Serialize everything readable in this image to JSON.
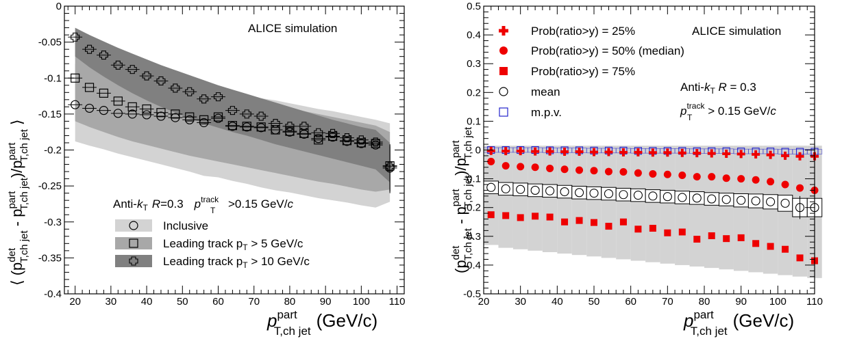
{
  "chart_data": [
    {
      "type": "scatter",
      "panel": "left",
      "xlim": [
        17,
        112
      ],
      "ylim": [
        -0.4,
        0
      ],
      "xticks": [
        20,
        30,
        40,
        50,
        60,
        70,
        80,
        90,
        100,
        110
      ],
      "yticks": [
        0,
        -0.05,
        -0.1,
        -0.15,
        -0.2,
        -0.25,
        -0.3,
        -0.35,
        -0.4
      ],
      "ytick_labels": [
        "0",
        "-0.05",
        "-0.1",
        "-0.15",
        "-0.2",
        "-0.25",
        "-0.3",
        "-0.35",
        "-0.4"
      ],
      "xlabel": {
        "main": "p",
        "sup": "part",
        "sub": "T,ch jet",
        "unit": "(GeV/c)"
      },
      "ylabel": {
        "open": "⟨ (p",
        "sup1": "det",
        "sub1": "T,ch jet",
        "minus": " - p",
        "sup2": "part",
        "sub2": "T,ch jet",
        "div": ")/p",
        "sup3": "part",
        "sub3": "T,ch jet",
        "close": "⟩"
      },
      "annotation": "ALICE simulation",
      "legend_header": {
        "a": "Anti-",
        "k": "k",
        "t": "T",
        "r": "R",
        "rv": "=0.3",
        "p": "p",
        "psup": "track",
        "psub": "T",
        "cut": ">0.15 GeV/",
        "c": "c"
      },
      "legend": [
        {
          "label": "Inclusive",
          "marker": "circle",
          "band": "#d3d3d3"
        },
        {
          "label": "Leading track  p",
          "sub": "T",
          "tail": " > 5 GeV/c",
          "marker": "square",
          "band": "#a8a8a8"
        },
        {
          "label": "Leading track  p",
          "sub": "T",
          "tail": " > 10 GeV/c",
          "marker": "cross",
          "band": "#808080"
        }
      ],
      "series": [
        {
          "name": "Inclusive",
          "marker": "circle",
          "color": "#000000",
          "band_color": "#d3d3d3",
          "x": [
            20,
            24,
            28,
            32,
            36,
            40,
            44,
            48,
            52,
            56,
            60,
            64,
            68,
            72,
            76,
            80,
            84,
            88,
            92,
            96,
            100,
            104,
            108
          ],
          "y": [
            -0.137,
            -0.142,
            -0.145,
            -0.149,
            -0.15,
            -0.151,
            -0.153,
            -0.155,
            -0.158,
            -0.162,
            -0.156,
            -0.167,
            -0.168,
            -0.169,
            -0.172,
            -0.175,
            -0.178,
            -0.184,
            -0.182,
            -0.188,
            -0.191,
            -0.193,
            -0.225
          ],
          "band_low": [
            -0.188,
            -0.194,
            -0.199,
            -0.205,
            -0.21,
            -0.215,
            -0.22,
            -0.225,
            -0.23,
            -0.236,
            -0.238,
            -0.243,
            -0.247,
            -0.252,
            -0.256,
            -0.259,
            -0.263,
            -0.267,
            -0.27,
            -0.273,
            -0.277,
            -0.28,
            -0.272
          ],
          "band_high": [
            -0.08,
            -0.084,
            -0.088,
            -0.092,
            -0.096,
            -0.1,
            -0.103,
            -0.107,
            -0.111,
            -0.115,
            -0.118,
            -0.121,
            -0.124,
            -0.128,
            -0.131,
            -0.135,
            -0.139,
            -0.143,
            -0.146,
            -0.15,
            -0.154,
            -0.158,
            -0.163
          ]
        },
        {
          "name": "Leading track pT > 5 GeV/c",
          "marker": "square",
          "color": "#000000",
          "band_color": "#a8a8a8",
          "x": [
            20,
            24,
            28,
            32,
            36,
            40,
            44,
            48,
            52,
            56,
            60,
            64,
            68,
            72,
            76,
            80,
            84,
            88,
            92,
            96,
            100,
            104,
            108
          ],
          "y": [
            -0.1,
            -0.113,
            -0.121,
            -0.132,
            -0.14,
            -0.143,
            -0.148,
            -0.15,
            -0.154,
            -0.158,
            -0.154,
            -0.166,
            -0.167,
            -0.168,
            -0.172,
            -0.174,
            -0.177,
            -0.186,
            -0.181,
            -0.187,
            -0.19,
            -0.191,
            -0.222
          ],
          "band_low": [
            -0.16,
            -0.168,
            -0.175,
            -0.182,
            -0.188,
            -0.193,
            -0.198,
            -0.203,
            -0.208,
            -0.212,
            -0.216,
            -0.22,
            -0.224,
            -0.228,
            -0.232,
            -0.236,
            -0.24,
            -0.244,
            -0.247,
            -0.251,
            -0.255,
            -0.258,
            -0.255
          ],
          "band_high": [
            -0.05,
            -0.06,
            -0.069,
            -0.077,
            -0.085,
            -0.092,
            -0.098,
            -0.104,
            -0.11,
            -0.115,
            -0.12,
            -0.125,
            -0.129,
            -0.134,
            -0.138,
            -0.142,
            -0.146,
            -0.15,
            -0.154,
            -0.158,
            -0.162,
            -0.166,
            -0.175
          ]
        },
        {
          "name": "Leading track pT > 10 GeV/c",
          "marker": "cross",
          "color": "#000000",
          "band_color": "#808080",
          "x": [
            20,
            24,
            28,
            32,
            36,
            40,
            44,
            48,
            52,
            56,
            60,
            64,
            68,
            72,
            76,
            80,
            84,
            88,
            92,
            96,
            100,
            104,
            108
          ],
          "y": [
            -0.043,
            -0.06,
            -0.068,
            -0.082,
            -0.088,
            -0.097,
            -0.104,
            -0.114,
            -0.119,
            -0.129,
            -0.126,
            -0.145,
            -0.15,
            -0.153,
            -0.163,
            -0.167,
            -0.167,
            -0.176,
            -0.177,
            -0.183,
            -0.186,
            -0.189,
            -0.223
          ],
          "band_low": [
            -0.07,
            -0.085,
            -0.098,
            -0.11,
            -0.121,
            -0.131,
            -0.14,
            -0.148,
            -0.156,
            -0.163,
            -0.169,
            -0.175,
            -0.18,
            -0.186,
            -0.192,
            -0.197,
            -0.202,
            -0.207,
            -0.212,
            -0.217,
            -0.222,
            -0.227,
            -0.245
          ],
          "band_high": [
            -0.03,
            -0.04,
            -0.049,
            -0.058,
            -0.066,
            -0.074,
            -0.082,
            -0.089,
            -0.096,
            -0.103,
            -0.11,
            -0.116,
            -0.122,
            -0.128,
            -0.134,
            -0.14,
            -0.146,
            -0.152,
            -0.158,
            -0.163,
            -0.168,
            -0.172,
            -0.19
          ]
        }
      ]
    },
    {
      "type": "scatter",
      "panel": "right",
      "xlim": [
        20,
        110
      ],
      "ylim": [
        -0.5,
        0.5
      ],
      "xticks": [
        20,
        30,
        40,
        50,
        60,
        70,
        80,
        90,
        100,
        110
      ],
      "yticks": [
        -0.5,
        -0.4,
        -0.3,
        -0.2,
        -0.1,
        0,
        0.1,
        0.2,
        0.3,
        0.4,
        0.5
      ],
      "ytick_labels": [
        "-0.5",
        "-0.4",
        "-0.3",
        "-0.2",
        "-0.1",
        "0",
        "0.1",
        "0.2",
        "0.3",
        "0.4",
        "0.5"
      ],
      "xlabel": {
        "main": "p",
        "sup": "part",
        "sub": "T,ch jet",
        "unit": "(GeV/c)"
      },
      "ylabel": {
        "open": "(p",
        "sup1": "det",
        "sub1": "T,ch jet",
        "minus": " - p",
        "sup2": "part",
        "sub2": "T,ch jet",
        "div": ")/p",
        "sup3": "part",
        "sub3": "T,ch jet"
      },
      "annotation": "ALICE simulation",
      "info_line1": {
        "a": "Anti-",
        "k": "k",
        "t": "T",
        "r": " R",
        "rv": " = 0.3"
      },
      "info_line2": {
        "p": "p",
        "psup": "track",
        "psub": "T",
        "cut": " > 0.15 GeV/",
        "c": "c"
      },
      "legend": [
        {
          "label": "Prob(ratio>y) = 25%",
          "marker": "cross_filled",
          "color": "#ee0000"
        },
        {
          "label": "Prob(ratio>y) = 50% (median)",
          "marker": "circle_filled",
          "color": "#ee0000"
        },
        {
          "label": "Prob(ratio>y) = 75%",
          "marker": "square_filled",
          "color": "#ee0000"
        },
        {
          "label": "mean",
          "marker": "circle_open",
          "color": "#000000"
        },
        {
          "label": "m.p.v.",
          "marker": "square_open",
          "color": "#2222cc"
        }
      ],
      "band_color": "#d3d3d3",
      "x": [
        22,
        26,
        30,
        34,
        38,
        42,
        46,
        50,
        54,
        58,
        62,
        66,
        70,
        74,
        78,
        82,
        86,
        90,
        94,
        98,
        102,
        106,
        110
      ],
      "series": [
        {
          "name": "Prob(ratio>y) = 25%",
          "marker": "cross_filled",
          "color": "#ee0000",
          "y": [
            -0.003,
            -0.004,
            -0.004,
            -0.005,
            -0.005,
            -0.006,
            -0.006,
            -0.007,
            -0.007,
            -0.008,
            -0.008,
            -0.009,
            -0.009,
            -0.01,
            -0.011,
            -0.012,
            -0.013,
            -0.014,
            -0.015,
            -0.017,
            -0.02,
            -0.022,
            -0.022
          ]
        },
        {
          "name": "Prob(ratio>y) = 50% (median)",
          "marker": "circle_filled",
          "color": "#ee0000",
          "y": [
            -0.04,
            -0.055,
            -0.058,
            -0.06,
            -0.064,
            -0.067,
            -0.07,
            -0.072,
            -0.075,
            -0.076,
            -0.08,
            -0.083,
            -0.085,
            -0.088,
            -0.093,
            -0.093,
            -0.098,
            -0.1,
            -0.104,
            -0.11,
            -0.12,
            -0.132,
            -0.14
          ]
        },
        {
          "name": "Prob(ratio>y) = 75%",
          "marker": "square_filled",
          "color": "#ee0000",
          "y": [
            -0.225,
            -0.228,
            -0.235,
            -0.23,
            -0.233,
            -0.25,
            -0.245,
            -0.252,
            -0.265,
            -0.25,
            -0.275,
            -0.272,
            -0.288,
            -0.285,
            -0.31,
            -0.298,
            -0.308,
            -0.305,
            -0.325,
            -0.335,
            -0.345,
            -0.375,
            -0.385
          ]
        },
        {
          "name": "mean",
          "marker": "circle_open",
          "color": "#000000",
          "y": [
            -0.13,
            -0.135,
            -0.137,
            -0.14,
            -0.142,
            -0.145,
            -0.148,
            -0.15,
            -0.152,
            -0.155,
            -0.157,
            -0.16,
            -0.162,
            -0.165,
            -0.167,
            -0.17,
            -0.172,
            -0.175,
            -0.177,
            -0.18,
            -0.185,
            -0.2,
            -0.2
          ],
          "err": [
            0.022,
            0.022,
            0.022,
            0.022,
            0.022,
            0.022,
            0.022,
            0.022,
            0.022,
            0.022,
            0.022,
            0.022,
            0.022,
            0.022,
            0.022,
            0.022,
            0.022,
            0.023,
            0.024,
            0.025,
            0.028,
            0.032,
            0.032
          ]
        },
        {
          "name": "m.p.v.",
          "marker": "square_open",
          "color": "#2222cc",
          "y": [
            0.0,
            0.0,
            0.0,
            0.0,
            -0.001,
            -0.001,
            -0.001,
            -0.002,
            -0.002,
            -0.002,
            -0.003,
            -0.003,
            -0.003,
            -0.003,
            -0.004,
            -0.004,
            -0.004,
            -0.005,
            -0.005,
            -0.005,
            -0.006,
            -0.006,
            -0.006
          ]
        }
      ],
      "band_low": [
        -0.09,
        -0.1,
        -0.105,
        -0.11,
        -0.115,
        -0.12,
        -0.125,
        -0.13,
        -0.14,
        -0.15,
        -0.16,
        -0.165,
        -0.175,
        -0.185,
        -0.195,
        -0.205,
        -0.215,
        -0.22,
        -0.225,
        -0.23,
        -0.24,
        -0.255,
        -0.26
      ],
      "band_high": [
        0.015,
        0.015,
        0.015,
        0.015,
        0.015,
        0.015,
        0.015,
        0.015,
        0.015,
        0.015,
        0.015,
        0.015,
        0.015,
        0.015,
        0.015,
        0.015,
        0.015,
        0.015,
        0.015,
        0.015,
        0.015,
        0.015,
        0.015
      ],
      "band_bottom": [
        -0.33,
        -0.34,
        -0.345,
        -0.35,
        -0.355,
        -0.36,
        -0.365,
        -0.37,
        -0.375,
        -0.38,
        -0.385,
        -0.39,
        -0.395,
        -0.4,
        -0.405,
        -0.41,
        -0.415,
        -0.42,
        -0.425,
        -0.43,
        -0.435,
        -0.44,
        -0.445
      ]
    }
  ]
}
